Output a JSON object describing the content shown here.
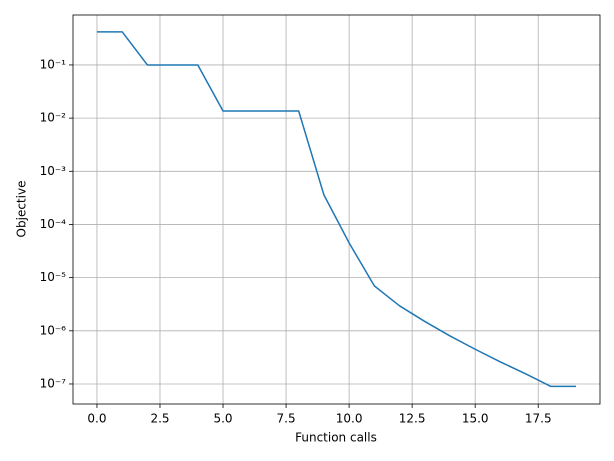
{
  "chart_data": {
    "type": "line",
    "xlabel": "Function calls",
    "ylabel": "Objective",
    "x": [
      0,
      1,
      2,
      3,
      4,
      5,
      6,
      7,
      8,
      9,
      10,
      11,
      12,
      13,
      14,
      15,
      16,
      17,
      18,
      19
    ],
    "series": [
      {
        "name": "Objective",
        "color": "#1f77b4",
        "values": [
          0.42,
          0.42,
          0.1,
          0.1,
          0.1,
          0.0136,
          0.0136,
          0.0136,
          0.0136,
          0.00036,
          4.5e-05,
          7e-06,
          2.95e-06,
          1.5e-06,
          8e-07,
          4.5e-07,
          2.6e-07,
          1.55e-07,
          9e-08,
          9e-08
        ]
      }
    ],
    "xlim": [
      -0.95,
      19.95
    ],
    "ylim": [
      0.87,
      4.2e-08
    ],
    "yscale": "log",
    "grid": true,
    "xticks": [
      {
        "value": 0,
        "label": "0.0"
      },
      2.5,
      {
        "value": 5,
        "label": "5.0"
      },
      7.5,
      {
        "value": 10,
        "label": "10.0"
      },
      12.5,
      {
        "value": 15,
        "label": "15.0"
      },
      17.5
    ],
    "yticks": [
      {
        "value": 0.1,
        "label": "10⁻¹"
      },
      {
        "value": 0.01,
        "label": "10⁻²"
      },
      {
        "value": 0.001,
        "label": "10⁻³"
      },
      {
        "value": 0.0001,
        "label": "10⁻⁴"
      },
      {
        "value": 1e-05,
        "label": "10⁻⁵"
      },
      {
        "value": 1e-06,
        "label": "10⁻⁶"
      },
      {
        "value": 1e-07,
        "label": "10⁻⁷"
      }
    ]
  }
}
